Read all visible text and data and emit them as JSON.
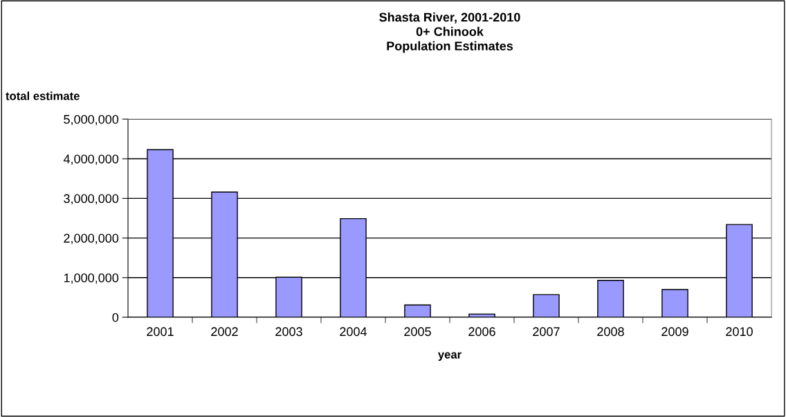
{
  "chart_data": {
    "type": "bar",
    "title": "Shasta River, 2001-2010\n0+ Chinook\nPopulation Estimates",
    "xlabel": "year",
    "ylabel": "total estimate",
    "categories": [
      "2001",
      "2002",
      "2003",
      "2004",
      "2005",
      "2006",
      "2007",
      "2008",
      "2009",
      "2010"
    ],
    "values": [
      4230000,
      3160000,
      1010000,
      2490000,
      310000,
      80000,
      570000,
      930000,
      700000,
      2340000
    ],
    "color": "#9999ff",
    "ylim": [
      0,
      5000000
    ],
    "yticks": [
      {
        "value": 0,
        "label": "0"
      },
      {
        "value": 1000000,
        "label": "1,000,000"
      },
      {
        "value": 2000000,
        "label": "2,000,000"
      },
      {
        "value": 3000000,
        "label": "3,000,000"
      },
      {
        "value": 4000000,
        "label": "4,000,000"
      },
      {
        "value": 5000000,
        "label": "5,000,000"
      }
    ],
    "grid": "y",
    "legend": false
  }
}
